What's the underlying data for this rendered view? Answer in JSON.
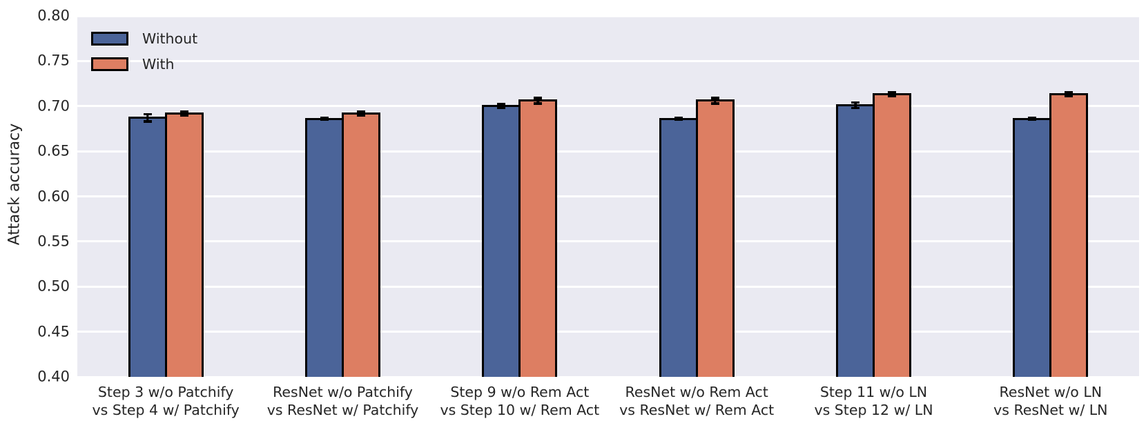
{
  "chart_data": {
    "type": "bar",
    "title": "",
    "xlabel": "",
    "ylabel": "Attack accuracy",
    "ylim": [
      0.4,
      0.8
    ],
    "yticks": [
      0.4,
      0.45,
      0.5,
      0.55,
      0.6,
      0.65,
      0.7,
      0.75,
      0.8
    ],
    "ytick_format_decimals": 2,
    "grid": true,
    "legend_position": "upper left",
    "categories": [
      [
        "Step 3 w/o Patchify",
        "vs Step 4 w/ Patchify"
      ],
      [
        "ResNet w/o Patchify",
        "vs ResNet w/ Patchify"
      ],
      [
        "Step 9 w/o Rem Act",
        "vs Step 10 w/ Rem Act"
      ],
      [
        "ResNet w/o Rem Act",
        "vs ResNet w/ Rem Act"
      ],
      [
        "Step 11 w/o LN",
        "vs Step 12 w/ LN"
      ],
      [
        "ResNet w/o LN",
        "vs ResNet w/ LN"
      ]
    ],
    "series": [
      {
        "name": "Without",
        "color": "#4B6499",
        "values": [
          0.687,
          0.686,
          0.7,
          0.686,
          0.701,
          0.686
        ],
        "errors": [
          0.004,
          0.001,
          0.002,
          0.001,
          0.003,
          0.001
        ]
      },
      {
        "name": "With",
        "color": "#DD7E62",
        "values": [
          0.692,
          0.692,
          0.706,
          0.706,
          0.713,
          0.713
        ],
        "errors": [
          0.002,
          0.002,
          0.003,
          0.003,
          0.002,
          0.002
        ]
      }
    ]
  },
  "styles": {
    "plot_background": "#EAEAF2",
    "grid_color": "#FFFFFF",
    "bar_edge_color": "#000000",
    "text_color": "#262626"
  }
}
